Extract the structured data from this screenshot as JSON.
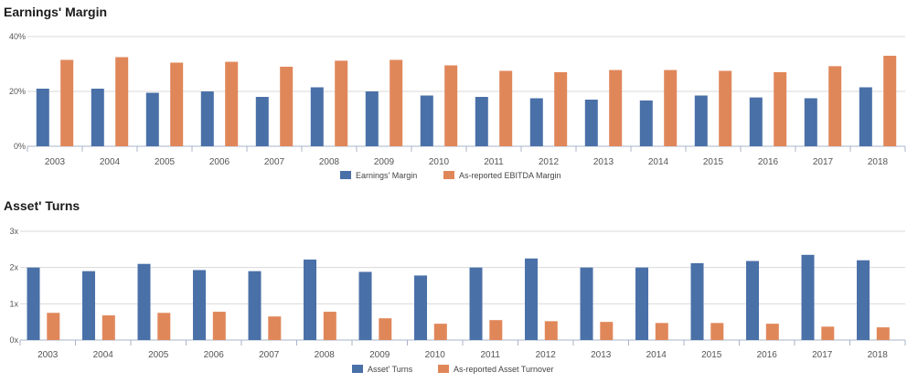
{
  "charts": [
    {
      "title": "Earnings' Margin",
      "chart_data": {
        "type": "bar",
        "title": "Earnings' Margin",
        "categories": [
          "2003",
          "2004",
          "2005",
          "2006",
          "2007",
          "2008",
          "2009",
          "2010",
          "2011",
          "2012",
          "2013",
          "2014",
          "2015",
          "2016",
          "2017",
          "2018"
        ],
        "series": [
          {
            "name": "Earnings' Margin",
            "color": "#4a70a8",
            "values": [
              21,
              21,
              19.5,
              20,
              18,
              21.5,
              20,
              18.5,
              18,
              17.5,
              17,
              16.7,
              18.5,
              17.8,
              17.5,
              21.5
            ]
          },
          {
            "name": "As-reported EBITDA Margin",
            "color": "#e0875a",
            "values": [
              31.5,
              32.5,
              30.5,
              30.8,
              29,
              31.2,
              31.5,
              29.5,
              27.5,
              27,
              27.8,
              27.8,
              27.5,
              27,
              29.2,
              33
            ]
          }
        ],
        "ylim": [
          0,
          40
        ],
        "yticks": [
          0,
          20,
          40
        ],
        "ytick_labels": [
          "0%",
          "20%",
          "40%"
        ],
        "xlabel": "",
        "ylabel": "",
        "grid": true,
        "legend": "bottom-center"
      }
    },
    {
      "title": "Asset' Turns",
      "chart_data": {
        "type": "bar",
        "title": "Asset' Turns",
        "categories": [
          "2003",
          "2004",
          "2005",
          "2006",
          "2007",
          "2008",
          "2009",
          "2010",
          "2011",
          "2012",
          "2013",
          "2014",
          "2015",
          "2016",
          "2017",
          "2018"
        ],
        "series": [
          {
            "name": "Asset' Turns",
            "color": "#4a70a8",
            "values": [
              2.0,
              1.9,
              2.1,
              1.93,
              1.9,
              2.22,
              1.88,
              1.78,
              2.0,
              2.25,
              2.0,
              2.0,
              2.12,
              2.18,
              2.35,
              2.2
            ]
          },
          {
            "name": "As-reported Asset Turnover",
            "color": "#e0875a",
            "values": [
              0.75,
              0.68,
              0.75,
              0.78,
              0.65,
              0.78,
              0.6,
              0.45,
              0.55,
              0.52,
              0.5,
              0.47,
              0.47,
              0.45,
              0.37,
              0.35
            ]
          }
        ],
        "ylim": [
          0,
          3
        ],
        "yticks": [
          0,
          1,
          2,
          3
        ],
        "ytick_labels": [
          "0x",
          "1x",
          "2x",
          "3x"
        ],
        "xlabel": "",
        "ylabel": "",
        "grid": true,
        "legend": "bottom-center"
      }
    }
  ]
}
